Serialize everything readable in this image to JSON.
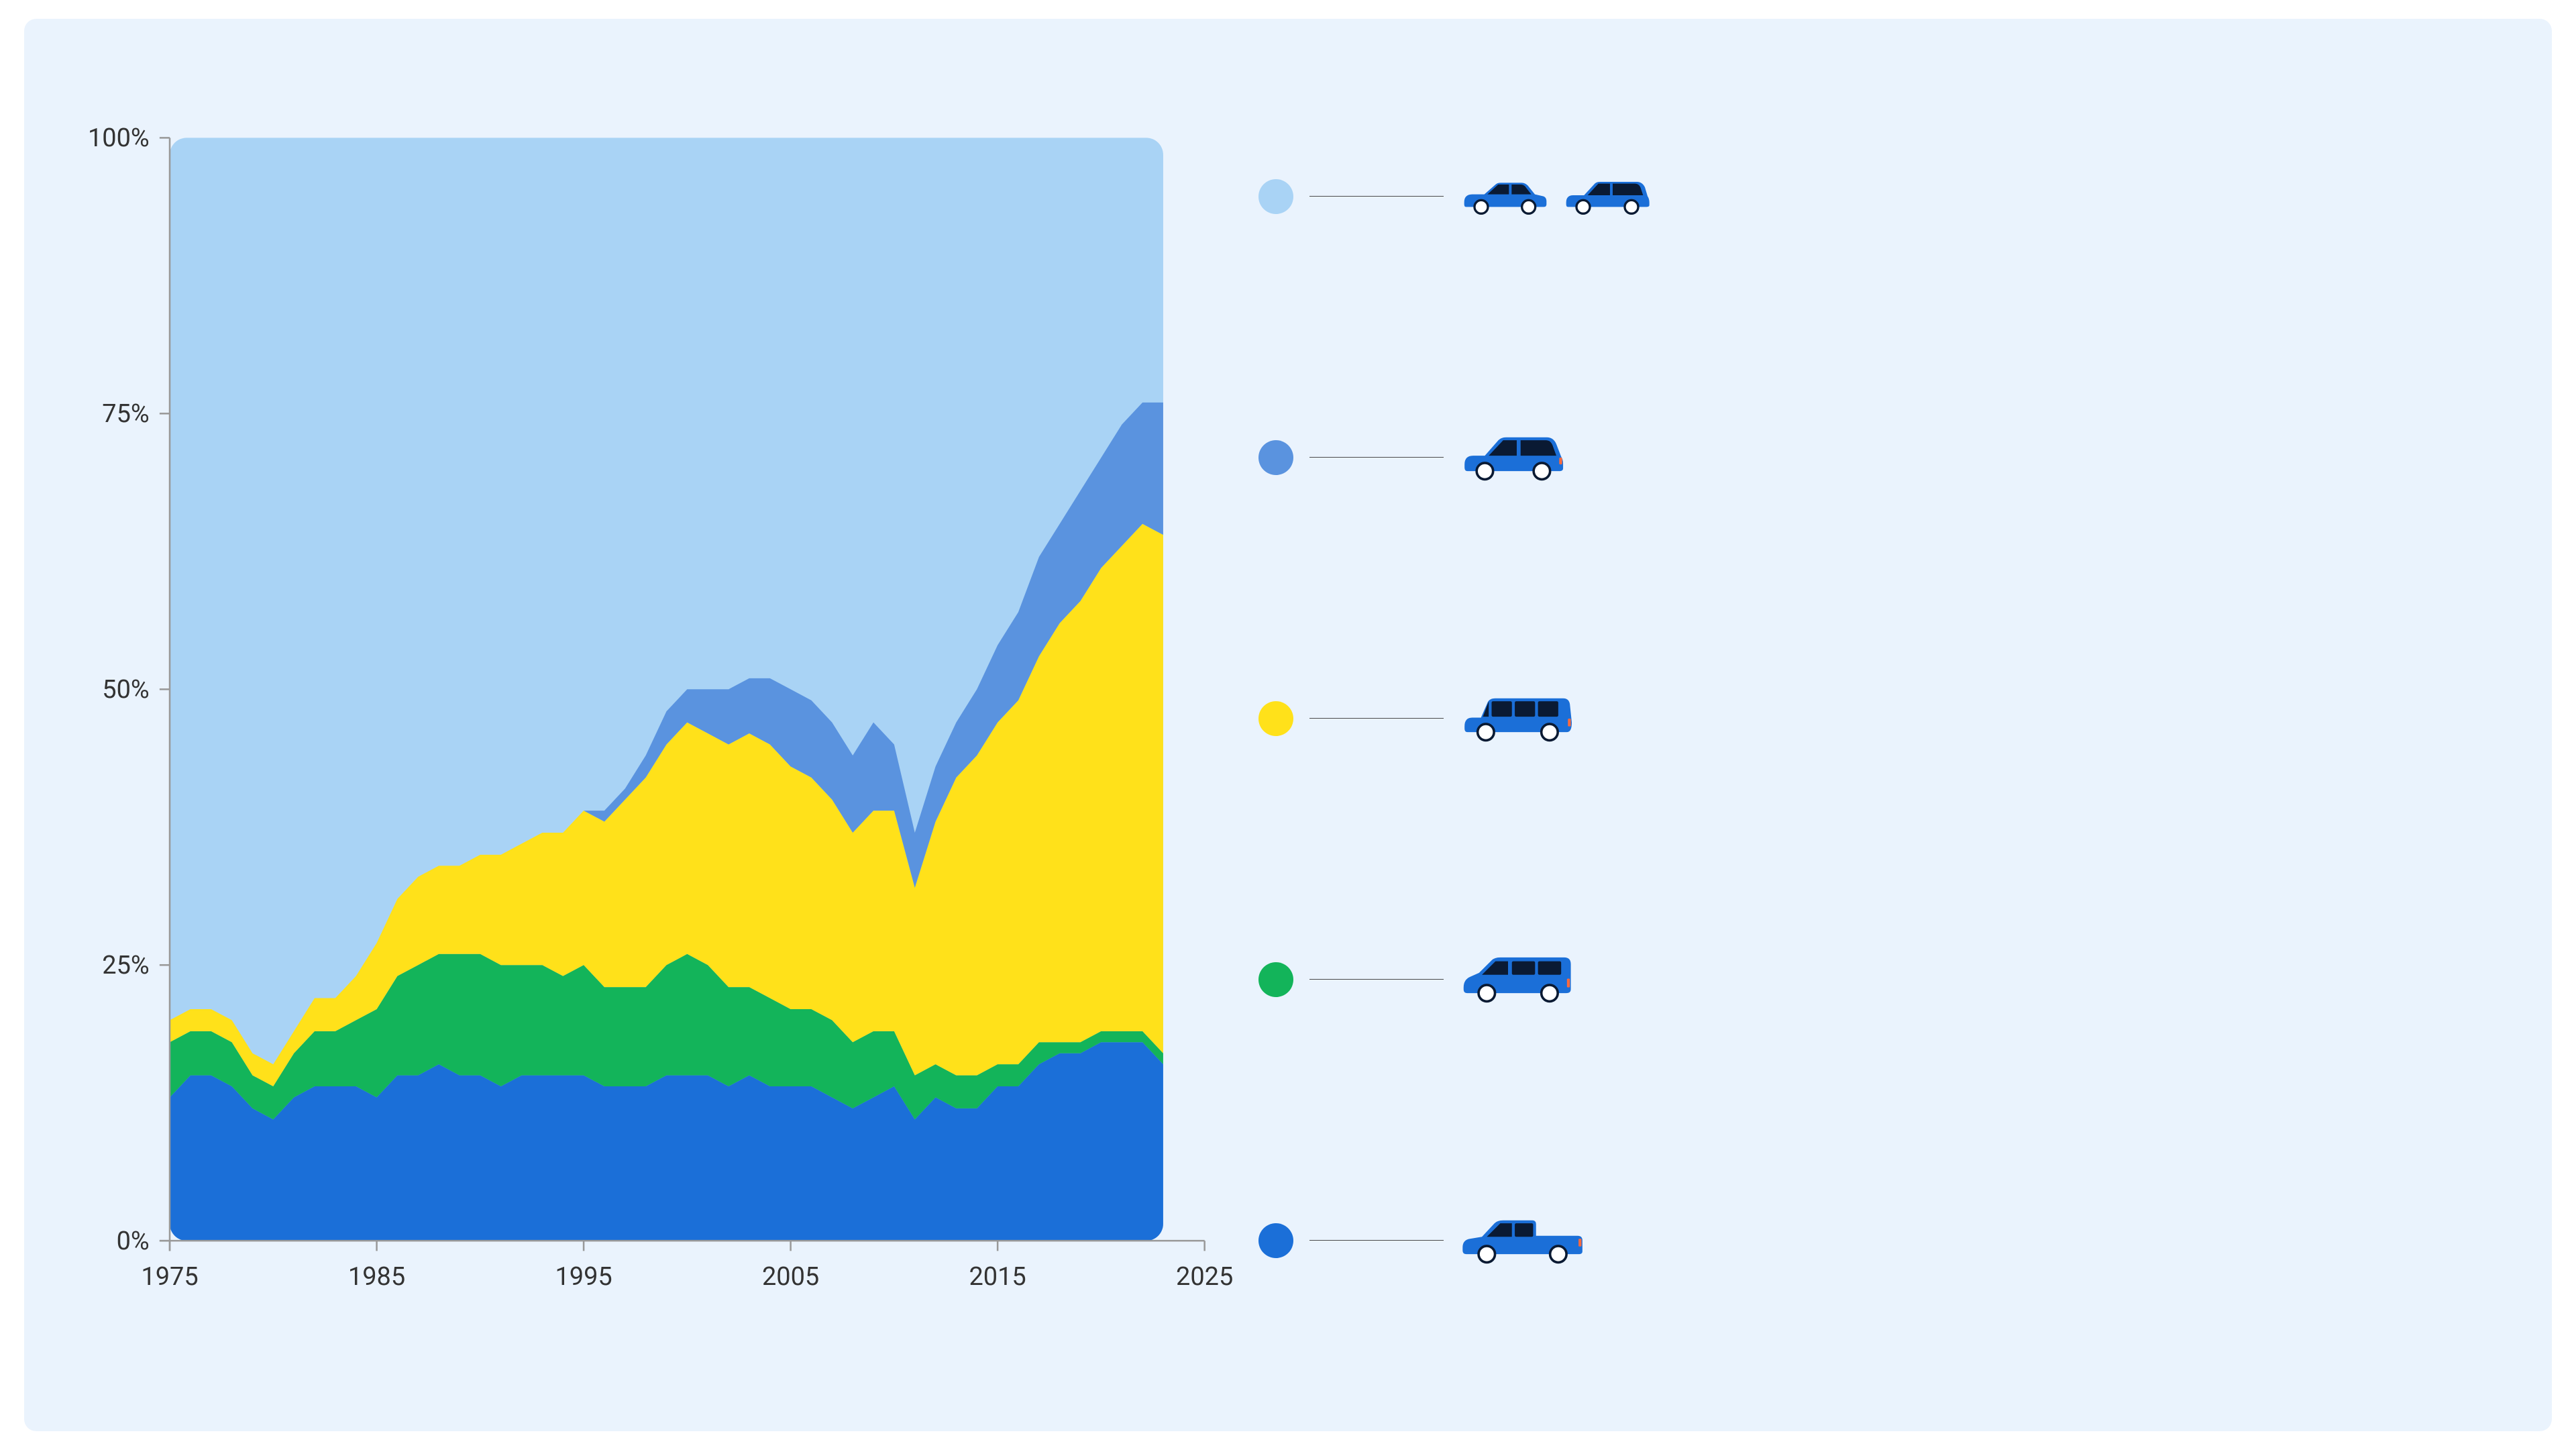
{
  "layout": {
    "card_background": "#eaf3fd",
    "card_border_radius": 18
  },
  "chart": {
    "type": "stacked-area",
    "xlim": [
      1975,
      2025
    ],
    "ylim": [
      0,
      100
    ],
    "y_ticks": [
      0,
      25,
      50,
      75,
      100
    ],
    "y_tick_labels": [
      "0%",
      "25%",
      "50%",
      "75%",
      "100%"
    ],
    "x_ticks": [
      1975,
      1985,
      1995,
      2005,
      2015,
      2025
    ],
    "x_tick_labels": [
      "1975",
      "1985",
      "1995",
      "2005",
      "2015",
      "2025"
    ],
    "axis_color": "#999999",
    "axis_label_color": "#333333",
    "axis_label_fontsize": 15,
    "plot_background": "#a9d3f5",
    "plot_corner_radius": 10,
    "data_x_start": 1975,
    "data_x_end": 2023,
    "series_order_bottom_to_top": [
      "pickup",
      "minivan",
      "suv",
      "crossover",
      "car"
    ],
    "series": {
      "pickup": {
        "label": "Pickup truck",
        "color": "#1b6fd8",
        "values": [
          13,
          15,
          15,
          14,
          12,
          11,
          13,
          14,
          14,
          14,
          13,
          15,
          15,
          16,
          15,
          15,
          14,
          15,
          15,
          15,
          15,
          14,
          14,
          14,
          15,
          15,
          15,
          14,
          15,
          14,
          14,
          14,
          13,
          12,
          13,
          14,
          11,
          13,
          12,
          12,
          14,
          14,
          16,
          17,
          17,
          18,
          18,
          18,
          16
        ]
      },
      "minivan": {
        "label": "Minivan / Van",
        "color": "#13b45a",
        "values": [
          5,
          4,
          4,
          4,
          3,
          3,
          4,
          5,
          5,
          6,
          8,
          9,
          10,
          10,
          11,
          11,
          11,
          10,
          10,
          9,
          10,
          9,
          9,
          9,
          10,
          11,
          10,
          9,
          8,
          8,
          7,
          7,
          7,
          6,
          6,
          5,
          4,
          3,
          3,
          3,
          2,
          2,
          2,
          1,
          1,
          1,
          1,
          1,
          1
        ]
      },
      "suv": {
        "label": "SUV",
        "color": "#ffe11a",
        "values": [
          2,
          2,
          2,
          2,
          2,
          2,
          2,
          3,
          3,
          4,
          6,
          7,
          8,
          8,
          8,
          9,
          10,
          11,
          12,
          13,
          14,
          15,
          17,
          19,
          20,
          21,
          21,
          22,
          23,
          23,
          22,
          21,
          20,
          19,
          20,
          20,
          17,
          22,
          27,
          29,
          31,
          33,
          35,
          38,
          40,
          42,
          44,
          46,
          47
        ]
      },
      "crossover": {
        "label": "Crossover / Car SUV",
        "color": "#5a93df",
        "values": [
          0,
          0,
          0,
          0,
          0,
          0,
          0,
          0,
          0,
          0,
          0,
          0,
          0,
          0,
          0,
          0,
          0,
          0,
          0,
          0,
          0,
          1,
          1,
          2,
          3,
          3,
          4,
          5,
          5,
          6,
          7,
          7,
          7,
          7,
          8,
          6,
          5,
          5,
          5,
          6,
          7,
          8,
          9,
          9,
          10,
          10,
          11,
          11,
          12
        ]
      },
      "car": {
        "label": "Sedan / Wagon",
        "color": "#a9d3f5",
        "values": [
          80,
          79,
          79,
          80,
          83,
          84,
          81,
          78,
          78,
          76,
          73,
          69,
          67,
          66,
          66,
          65,
          65,
          64,
          63,
          63,
          61,
          61,
          59,
          56,
          52,
          50,
          50,
          50,
          49,
          49,
          50,
          51,
          53,
          56,
          53,
          55,
          63,
          57,
          53,
          50,
          46,
          43,
          38,
          35,
          32,
          29,
          26,
          24,
          24
        ]
      }
    }
  },
  "legend": {
    "leader_color": "#4a4a4a",
    "swatch_diameter": 52,
    "rows": [
      {
        "key": "car",
        "swatch_color": "#a9d3f5",
        "vehicles": [
          "sedan",
          "wagon"
        ]
      },
      {
        "key": "crossover",
        "swatch_color": "#5a93df",
        "vehicles": [
          "crossover"
        ]
      },
      {
        "key": "suv",
        "swatch_color": "#ffe11a",
        "vehicles": [
          "suv"
        ]
      },
      {
        "key": "minivan",
        "swatch_color": "#13b45a",
        "vehicles": [
          "minivan"
        ]
      },
      {
        "key": "pickup",
        "swatch_color": "#1b6fd8",
        "vehicles": [
          "pickup"
        ]
      }
    ]
  },
  "vehicle_style": {
    "body_color": "#1b6fd8",
    "window_color": "#0a1a33",
    "wheel_fill": "#ffffff",
    "wheel_stroke": "#0a1a33",
    "wheel_stroke_width": 5,
    "taillight_color": "#ff6a3d"
  }
}
